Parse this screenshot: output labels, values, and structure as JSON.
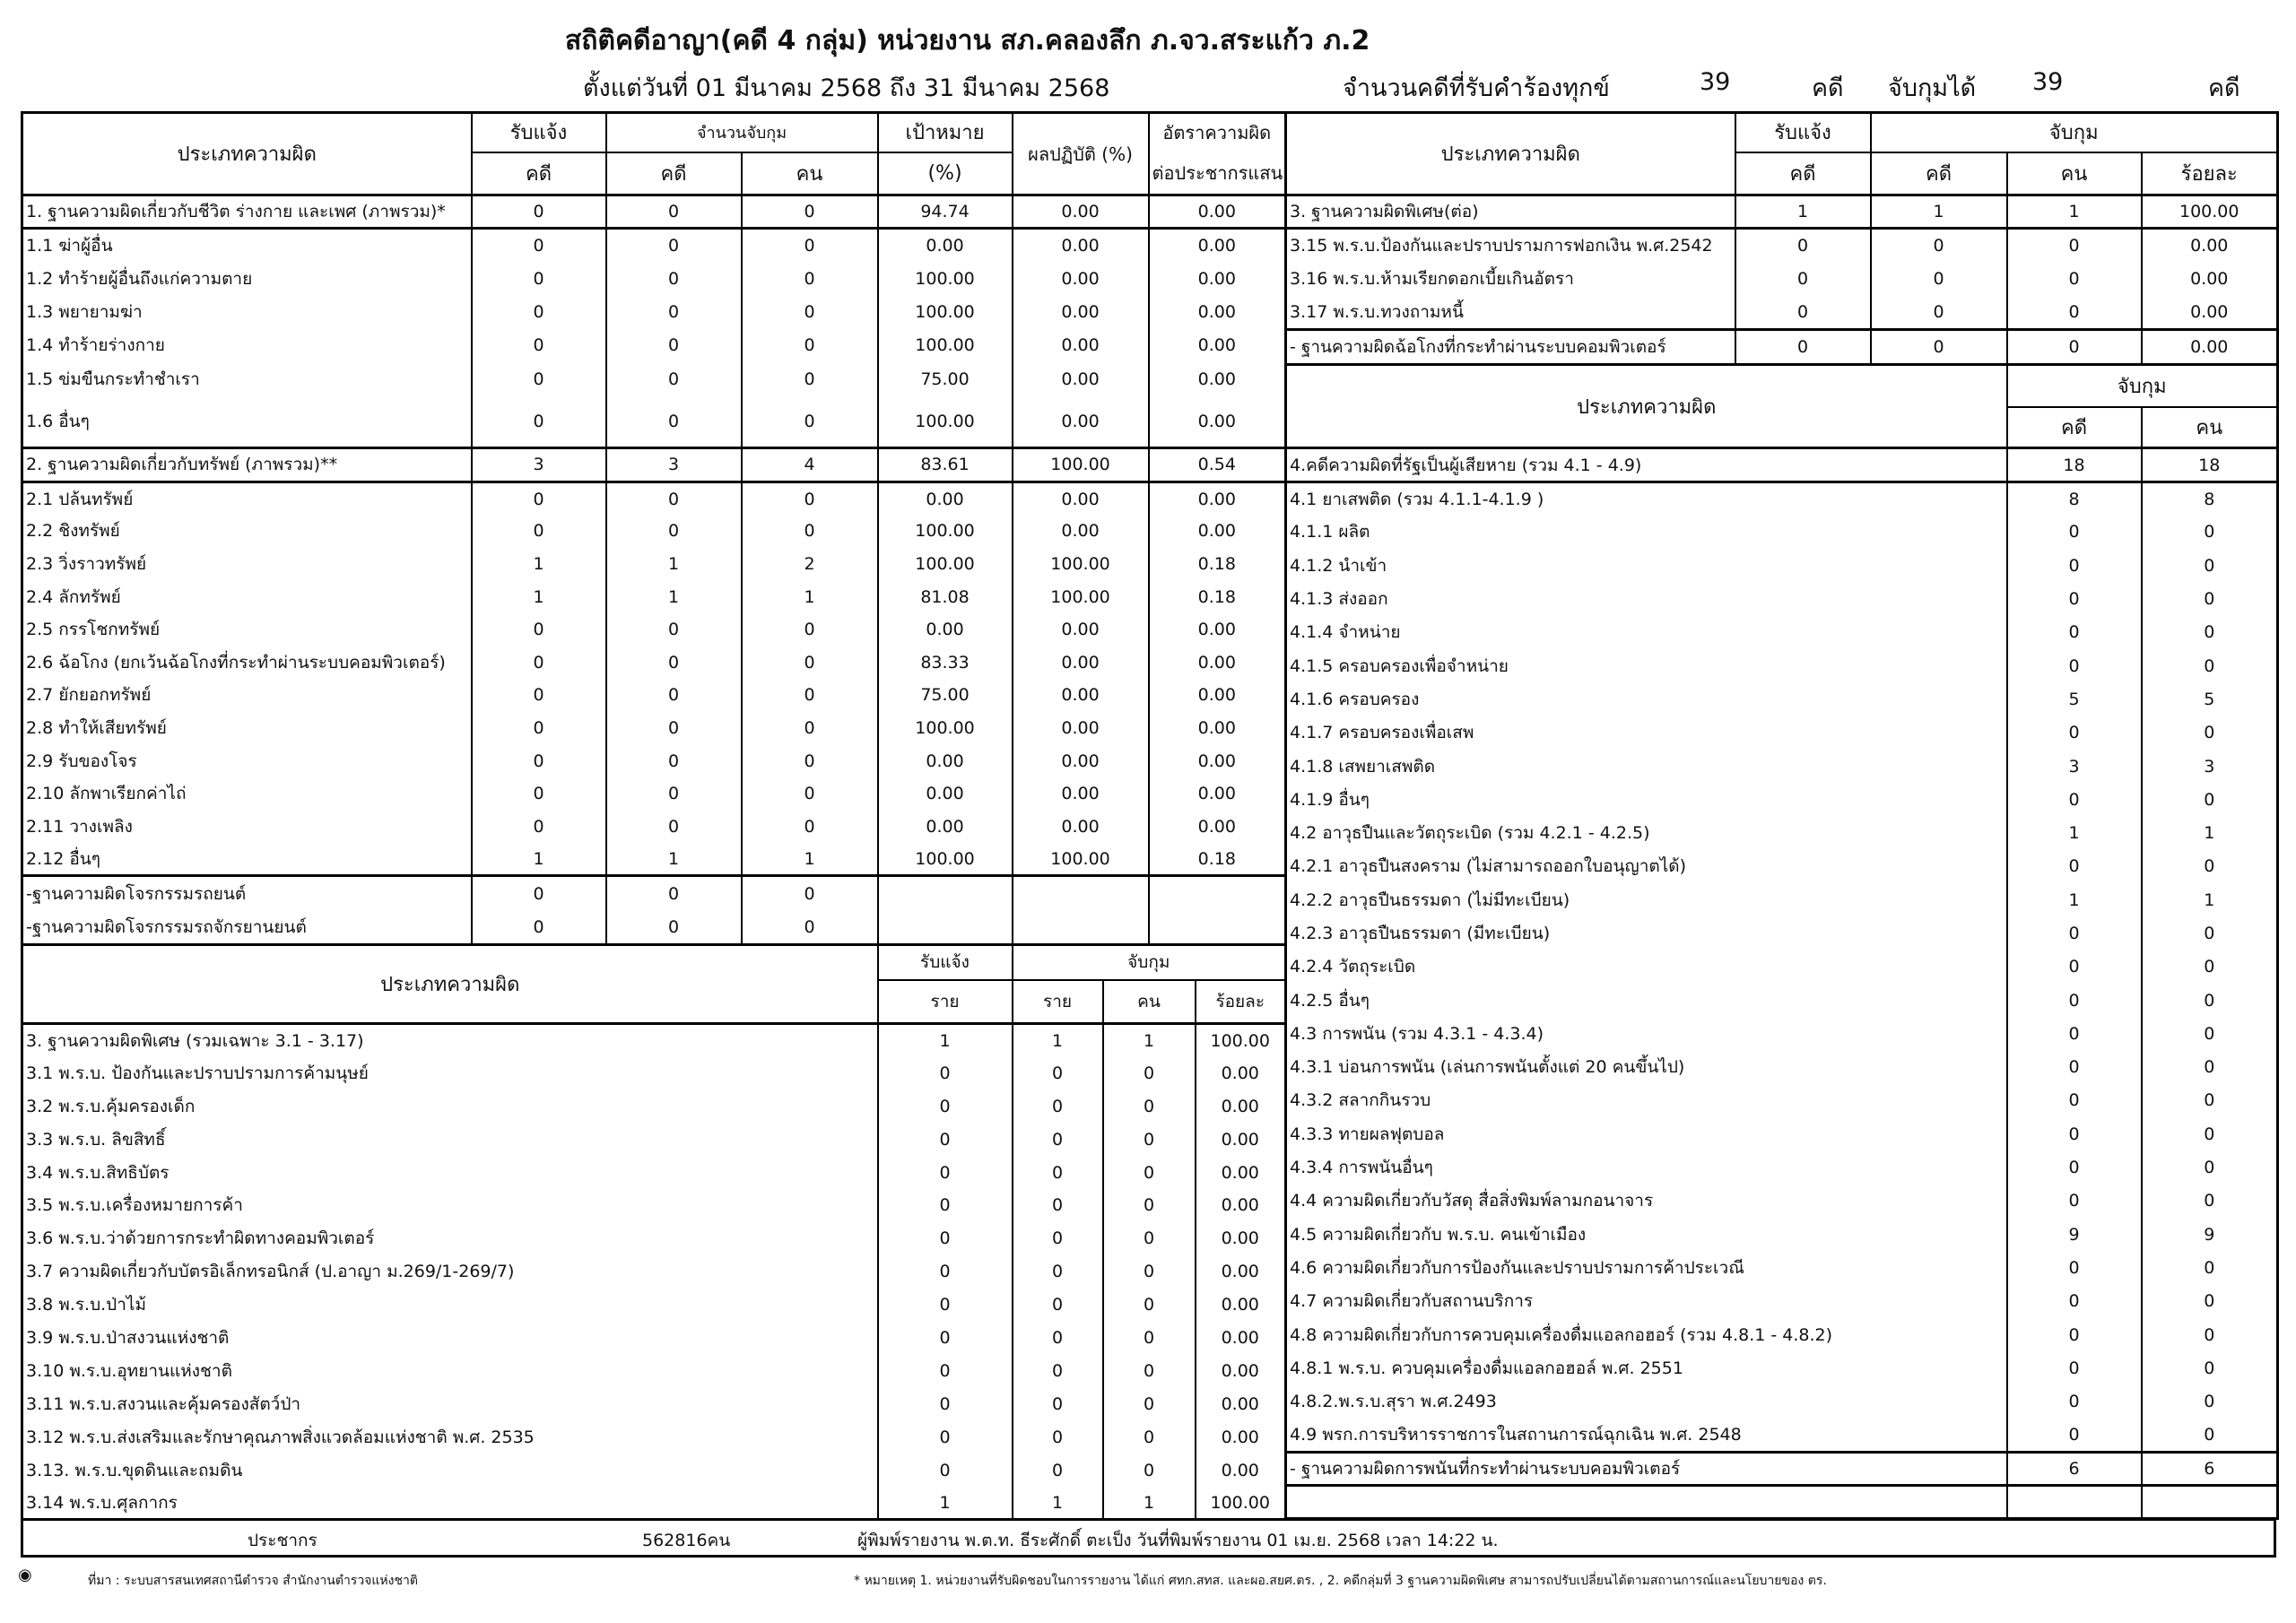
{
  "title": "สถิติคดีอาญา(คดี 4 กลุ่ม) หน่วยงาน สภ.คลองลึก ภ.จว.สระแก้ว ภ.2",
  "date_range": "ตั้งแต่วันที่ 01 มีนาคม 2568 ถึง 31 มีนาคม 2568",
  "summary": {
    "received_label": "จำนวนคดีที่รับคำร้องทุกข์",
    "received": "39",
    "received_unit": "คดี",
    "arrested_label": "จับกุมได้",
    "arrested": "39",
    "arrested_unit": "คดี"
  },
  "left_top": {
    "headers": {
      "offense": "ประเภทความผิด",
      "received": "รับแจ้ง",
      "arrest_count": "จำนวนจับกุม",
      "target": "เป้าหมาย",
      "cases": "คดี",
      "cases2": "คดี",
      "persons": "คน",
      "percent": "(%)",
      "performance": "ผลปฏิบัติ (%)",
      "rate1": "อัตราความผิด",
      "rate2": "ต่อประชากรแสน"
    },
    "rows": [
      {
        "label": "1. ฐานความผิดเกี่ยวกับชีวิต ร่างกาย และเพศ (ภาพรวม)*",
        "values": [
          "0",
          "0",
          "0",
          "94.74",
          "0.00",
          "0.00"
        ]
      },
      {
        "label": "1.1 ฆ่าผู้อื่น",
        "values": [
          "0",
          "0",
          "0",
          "0.00",
          "0.00",
          "0.00"
        ]
      },
      {
        "label": "1.2 ทำร้ายผู้อื่นถึงแก่ความตาย",
        "values": [
          "0",
          "0",
          "0",
          "100.00",
          "0.00",
          "0.00"
        ]
      },
      {
        "label": "1.3 พยายามฆ่า",
        "values": [
          "0",
          "0",
          "0",
          "100.00",
          "0.00",
          "0.00"
        ]
      },
      {
        "label": "1.4 ทำร้ายร่างกาย",
        "values": [
          "0",
          "0",
          "0",
          "100.00",
          "0.00",
          "0.00"
        ]
      },
      {
        "label": "1.5 ข่มขืนกระทำชำเรา",
        "values": [
          "0",
          "0",
          "0",
          "75.00",
          "0.00",
          "0.00"
        ]
      },
      {
        "label": "1.6 อื่นๆ",
        "values": [
          "0",
          "0",
          "0",
          "100.00",
          "0.00",
          "0.00"
        ]
      },
      {
        "label": "2. ฐานความผิดเกี่ยวกับทรัพย์ (ภาพรวม)**",
        "values": [
          "3",
          "3",
          "4",
          "83.61",
          "100.00",
          "0.54"
        ]
      },
      {
        "label": "2.1 ปล้นทรัพย์",
        "values": [
          "0",
          "0",
          "0",
          "0.00",
          "0.00",
          "0.00"
        ]
      },
      {
        "label": "2.2 ชิงทรัพย์",
        "values": [
          "0",
          "0",
          "0",
          "100.00",
          "0.00",
          "0.00"
        ]
      },
      {
        "label": "2.3 วิ่งราวทรัพย์",
        "values": [
          "1",
          "1",
          "2",
          "100.00",
          "100.00",
          "0.18"
        ]
      },
      {
        "label": "2.4 ลักทรัพย์",
        "values": [
          "1",
          "1",
          "1",
          "81.08",
          "100.00",
          "0.18"
        ]
      },
      {
        "label": "2.5 กรรโชกทรัพย์",
        "values": [
          "0",
          "0",
          "0",
          "0.00",
          "0.00",
          "0.00"
        ]
      },
      {
        "label": "2.6 ฉ้อโกง (ยกเว้นฉ้อโกงที่กระทำผ่านระบบคอมพิวเตอร์)",
        "values": [
          "0",
          "0",
          "0",
          "83.33",
          "0.00",
          "0.00"
        ]
      },
      {
        "label": "2.7 ยักยอกทรัพย์",
        "values": [
          "0",
          "0",
          "0",
          "75.00",
          "0.00",
          "0.00"
        ]
      },
      {
        "label": "2.8 ทำให้เสียทรัพย์",
        "values": [
          "0",
          "0",
          "0",
          "100.00",
          "0.00",
          "0.00"
        ]
      },
      {
        "label": "2.9 รับของโจร",
        "values": [
          "0",
          "0",
          "0",
          "0.00",
          "0.00",
          "0.00"
        ]
      },
      {
        "label": "2.10 ลักพาเรียกค่าไถ่",
        "values": [
          "0",
          "0",
          "0",
          "0.00",
          "0.00",
          "0.00"
        ]
      },
      {
        "label": "2.11 วางเพลิง",
        "values": [
          "0",
          "0",
          "0",
          "0.00",
          "0.00",
          "0.00"
        ]
      },
      {
        "label": "2.12 อื่นๆ",
        "values": [
          "1",
          "1",
          "1",
          "100.00",
          "100.00",
          "0.18"
        ]
      },
      {
        "label": "-ฐานความผิดโจรกรรมรถยนต์",
        "values": [
          "0",
          "0",
          "0",
          "",
          "",
          ""
        ]
      },
      {
        "label": "-ฐานความผิดโจรกรรมรถจักรยานยนต์",
        "values": [
          "0",
          "0",
          "0",
          "",
          "",
          ""
        ]
      }
    ]
  },
  "left_bottom": {
    "headers": {
      "offense": "ประเภทความผิด",
      "received": "รับแจ้ง",
      "arrest": "จับกุม",
      "items": "ราย",
      "items2": "ราย",
      "persons": "คน",
      "percent": "ร้อยละ"
    },
    "rows": [
      {
        "label": "3. ฐานความผิดพิเศษ (รวมเฉพาะ 3.1 - 3.17)",
        "values": [
          "1",
          "1",
          "1",
          "100.00"
        ]
      },
      {
        "label": "3.1 พ.ร.บ. ป้องกันและปราบปรามการค้ามนุษย์",
        "values": [
          "0",
          "0",
          "0",
          "0.00"
        ]
      },
      {
        "label": "3.2 พ.ร.บ.คุ้มครองเด็ก",
        "values": [
          "0",
          "0",
          "0",
          "0.00"
        ]
      },
      {
        "label": "3.3 พ.ร.บ. ลิขสิทธิ์",
        "values": [
          "0",
          "0",
          "0",
          "0.00"
        ]
      },
      {
        "label": "3.4 พ.ร.บ.สิทธิบัตร",
        "values": [
          "0",
          "0",
          "0",
          "0.00"
        ]
      },
      {
        "label": "3.5 พ.ร.บ.เครื่องหมายการค้า",
        "values": [
          "0",
          "0",
          "0",
          "0.00"
        ]
      },
      {
        "label": "3.6 พ.ร.บ.ว่าด้วยการกระทำผิดทางคอมพิวเตอร์",
        "values": [
          "0",
          "0",
          "0",
          "0.00"
        ]
      },
      {
        "label": "3.7 ความผิดเกี่ยวกับบัตรอิเล็กทรอนิกส์  (ป.อาญา ม.269/1-269/7)",
        "values": [
          "0",
          "0",
          "0",
          "0.00"
        ]
      },
      {
        "label": "3.8 พ.ร.บ.ป่าไม้",
        "values": [
          "0",
          "0",
          "0",
          "0.00"
        ]
      },
      {
        "label": "3.9 พ.ร.บ.ป่าสงวนแห่งชาติ",
        "values": [
          "0",
          "0",
          "0",
          "0.00"
        ]
      },
      {
        "label": "3.10 พ.ร.บ.อุทยานแห่งชาติ",
        "values": [
          "0",
          "0",
          "0",
          "0.00"
        ]
      },
      {
        "label": "3.11 พ.ร.บ.สงวนและคุ้มครองสัตว์ป่า",
        "values": [
          "0",
          "0",
          "0",
          "0.00"
        ]
      },
      {
        "label": "3.12 พ.ร.บ.ส่งเสริมและรักษาคุณภาพสิ่งแวดล้อมแห่งชาติ พ.ศ. 2535",
        "values": [
          "0",
          "0",
          "0",
          "0.00"
        ]
      },
      {
        "label": "3.13. พ.ร.บ.ขุดดินและถมดิน",
        "values": [
          "0",
          "0",
          "0",
          "0.00"
        ]
      },
      {
        "label": "3.14 พ.ร.บ.ศุลกากร",
        "values": [
          "1",
          "1",
          "1",
          "100.00"
        ]
      }
    ]
  },
  "right_top": {
    "headers": {
      "offense": "ประเภทความผิด",
      "received": "รับแจ้ง",
      "arrest": "จับกุม",
      "cases": "คดี",
      "cases2": "คดี",
      "persons": "คน",
      "percent": "ร้อยละ"
    },
    "rows": [
      {
        "label": "3. ฐานความผิดพิเศษ(ต่อ)",
        "values": [
          "1",
          "1",
          "1",
          "100.00"
        ]
      },
      {
        "label": "3.15 พ.ร.บ.ป้องกันและปราบปรามการฟอกเงิน พ.ศ.2542",
        "values": [
          "0",
          "0",
          "0",
          "0.00"
        ]
      },
      {
        "label": "3.16 พ.ร.บ.ห้ามเรียกดอกเบี้ยเกินอัตรา",
        "values": [
          "0",
          "0",
          "0",
          "0.00"
        ]
      },
      {
        "label": "3.17 พ.ร.บ.ทวงถามหนี้",
        "values": [
          "0",
          "0",
          "0",
          "0.00"
        ]
      },
      {
        "label": "- ฐานความผิดฉ้อโกงที่กระทำผ่านระบบคอมพิวเตอร์",
        "values": [
          "0",
          "0",
          "0",
          "0.00"
        ]
      }
    ]
  },
  "right_bottom": {
    "headers": {
      "offense": "ประเภทความผิด",
      "arrest": "จับกุม",
      "cases": "คดี",
      "persons": "คน"
    },
    "rows": [
      {
        "label": "4.คดีความผิดที่รัฐเป็นผู้เสียหาย (รวม 4.1 - 4.9)",
        "values": [
          "18",
          "18"
        ]
      },
      {
        "label": "4.1 ยาเสพติด (รวม 4.1.1-4.1.9 )",
        "values": [
          "8",
          "8"
        ]
      },
      {
        "label": "4.1.1 ผลิต",
        "values": [
          "0",
          "0"
        ]
      },
      {
        "label": "4.1.2 นำเข้า",
        "values": [
          "0",
          "0"
        ]
      },
      {
        "label": "4.1.3 ส่งออก",
        "values": [
          "0",
          "0"
        ]
      },
      {
        "label": "4.1.4 จำหน่าย",
        "values": [
          "0",
          "0"
        ]
      },
      {
        "label": "4.1.5 ครอบครองเพื่อจำหน่าย",
        "values": [
          "0",
          "0"
        ]
      },
      {
        "label": "4.1.6 ครอบครอง",
        "values": [
          "5",
          "5"
        ]
      },
      {
        "label": "4.1.7 ครอบครองเพื่อเสพ",
        "values": [
          "0",
          "0"
        ]
      },
      {
        "label": "4.1.8 เสพยาเสพติด",
        "values": [
          "3",
          "3"
        ]
      },
      {
        "label": "4.1.9 อื่นๆ",
        "values": [
          "0",
          "0"
        ]
      },
      {
        "label": "4.2 อาวุธปืนและวัตถุระเบิด (รวม 4.2.1 - 4.2.5)",
        "values": [
          "1",
          "1"
        ]
      },
      {
        "label": "4.2.1 อาวุธปืนสงคราม (ไม่สามารถออกใบอนุญาตได้)",
        "values": [
          "0",
          "0"
        ]
      },
      {
        "label": "4.2.2 อาวุธปืนธรรมดา (ไม่มีทะเบียน)",
        "values": [
          "1",
          "1"
        ]
      },
      {
        "label": "4.2.3 อาวุธปืนธรรมดา (มีทะเบียน)",
        "values": [
          "0",
          "0"
        ]
      },
      {
        "label": "4.2.4 วัตถุระเบิด",
        "values": [
          "0",
          "0"
        ]
      },
      {
        "label": "4.2.5 อื่นๆ",
        "values": [
          "0",
          "0"
        ]
      },
      {
        "label": "4.3 การพนัน (รวม 4.3.1 - 4.3.4)",
        "values": [
          "0",
          "0"
        ]
      },
      {
        "label": "4.3.1 บ่อนการพนัน (เล่นการพนันตั้งแต่ 20 คนขึ้นไป)",
        "values": [
          "0",
          "0"
        ]
      },
      {
        "label": "4.3.2 สลากกินรวบ",
        "values": [
          "0",
          "0"
        ]
      },
      {
        "label": "4.3.3 ทายผลฟุตบอล",
        "values": [
          "0",
          "0"
        ]
      },
      {
        "label": "4.3.4 การพนันอื่นๆ",
        "values": [
          "0",
          "0"
        ]
      },
      {
        "label": "4.4 ความผิดเกี่ยวกับวัสดุ สื่อสิ่งพิมพ์ลามกอนาจาร",
        "values": [
          "0",
          "0"
        ]
      },
      {
        "label": "4.5 ความผิดเกี่ยวกับ พ.ร.บ. คนเข้าเมือง",
        "values": [
          "9",
          "9"
        ]
      },
      {
        "label": "4.6 ความผิดเกี่ยวกับการป้องกันและปราบปรามการค้าประเวณี",
        "values": [
          "0",
          "0"
        ]
      },
      {
        "label": "4.7 ความผิดเกี่ยวกับสถานบริการ",
        "values": [
          "0",
          "0"
        ]
      },
      {
        "label": "4.8 ความผิดเกี่ยวกับการควบคุมเครื่องดื่มแอลกอฮอร์ (รวม 4.8.1 - 4.8.2)",
        "values": [
          "0",
          "0"
        ]
      },
      {
        "label": "4.8.1 พ.ร.บ. ควบคุมเครื่องดื่มแอลกอฮอล์ พ.ศ. 2551",
        "values": [
          "0",
          "0"
        ]
      },
      {
        "label": "4.8.2.พ.ร.บ.สุรา พ.ศ.2493",
        "values": [
          "0",
          "0"
        ]
      },
      {
        "label": "4.9 พรก.การบริหารราชการในสถานการณ์ฉุกเฉิน พ.ศ. 2548",
        "values": [
          "0",
          "0"
        ]
      },
      {
        "label": "- ฐานความผิดการพนันที่กระทำผ่านระบบคอมพิวเตอร์",
        "values": [
          "6",
          "6"
        ]
      },
      {
        "label": "",
        "values": [
          "",
          ""
        ]
      }
    ]
  },
  "footer": {
    "population_label": "ประชากร",
    "population": "562816คน",
    "reporter": "ผู้พิมพ์รายงาน พ.ต.ท. ธีระศักดิ์ ตะเป็ง วันที่พิมพ์รายงาน 01 เม.ย. 2568  เวลา 14:22 น."
  },
  "notes": {
    "source": "ที่มา : ระบบสารสนเทศสถานีตำรวจ  สำนักงานตำรวจแห่งชาติ",
    "remark": "* หมายเหตุ   1. หน่วยงานที่รับผิดชอบในการรายงาน ได้แก่ ศทก.สทส. และผอ.สยศ.ตร. , 2. คดีกลุ่มที่ 3 ฐานความผิดพิเศษ สามารถปรับเปลี่ยนได้ตามสถานการณ์และนโยบายของ ตร.",
    "icon": "police-badge-icon"
  }
}
